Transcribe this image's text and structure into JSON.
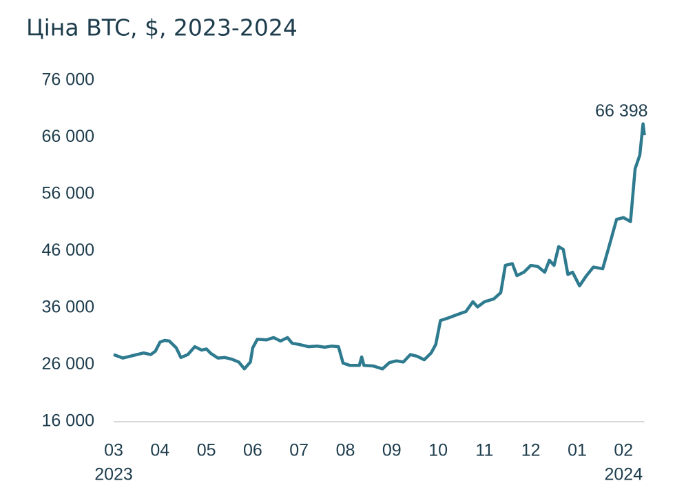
{
  "chart_data": {
    "type": "line",
    "title": "Ціна BTC, $, 2023-2024",
    "color": "#2e7a8f",
    "x": [
      0,
      0.1,
      0.2,
      0.35,
      0.5,
      0.65,
      0.8,
      0.9,
      1.0,
      1.1,
      1.2,
      1.35,
      1.45,
      1.6,
      1.75,
      1.9,
      2.0,
      2.1,
      2.25,
      2.4,
      2.55,
      2.7,
      2.82,
      2.95,
      3.0,
      3.1,
      3.3,
      3.45,
      3.6,
      3.75,
      3.85,
      4.0,
      4.2,
      4.4,
      4.55,
      4.7,
      4.85,
      4.95,
      5.1,
      5.3,
      5.35,
      5.4,
      5.6,
      5.8,
      5.95,
      6.1,
      6.25,
      6.4,
      6.55,
      6.7,
      6.85,
      6.95,
      7.05,
      7.2,
      7.4,
      7.6,
      7.75,
      7.85,
      8.0,
      8.2,
      8.35,
      8.45,
      8.6,
      8.7,
      8.85,
      9.0,
      9.15,
      9.3,
      9.4,
      9.5,
      9.6,
      9.7,
      9.8,
      9.9,
      10.05,
      10.2,
      10.35,
      10.55,
      10.7,
      10.85,
      11.0,
      11.15,
      11.25,
      11.35,
      11.42,
      11.45
    ],
    "values": [
      27800,
      27500,
      27200,
      27500,
      27800,
      28100,
      27800,
      28400,
      30000,
      30300,
      30200,
      29000,
      27300,
      27800,
      29200,
      28600,
      28800,
      28000,
      27200,
      27300,
      27000,
      26500,
      25300,
      26500,
      29000,
      30500,
      30400,
      30800,
      30200,
      30800,
      29800,
      29600,
      29200,
      29300,
      29100,
      29300,
      29200,
      26300,
      25900,
      25900,
      27400,
      25900,
      25800,
      25300,
      26400,
      26700,
      26500,
      27800,
      27500,
      26900,
      28100,
      29600,
      33800,
      34200,
      34800,
      35400,
      37100,
      36200,
      37100,
      37600,
      38700,
      43500,
      43800,
      41700,
      42300,
      43500,
      43300,
      42300,
      44400,
      43500,
      46800,
      46300,
      41900,
      42300,
      39900,
      41700,
      43200,
      42900,
      47200,
      51600,
      51900,
      51200,
      60500,
      62900,
      68400,
      66398
    ],
    "ylim": [
      16000,
      76000
    ],
    "yticks": [
      {
        "value": 16000,
        "label": "16 000"
      },
      {
        "value": 26000,
        "label": "26 000"
      },
      {
        "value": 36000,
        "label": "36 000"
      },
      {
        "value": 46000,
        "label": "46 000"
      },
      {
        "value": 56000,
        "label": "56 000"
      },
      {
        "value": 66000,
        "label": "66 000"
      },
      {
        "value": 76000,
        "label": "76 000"
      }
    ],
    "xlim": [
      0,
      11.45
    ],
    "xticks": [
      {
        "value": 0,
        "label": "03"
      },
      {
        "value": 1,
        "label": "04"
      },
      {
        "value": 2,
        "label": "05"
      },
      {
        "value": 3,
        "label": "06"
      },
      {
        "value": 4,
        "label": "07"
      },
      {
        "value": 5,
        "label": "08"
      },
      {
        "value": 6,
        "label": "09"
      },
      {
        "value": 7,
        "label": "10"
      },
      {
        "value": 8,
        "label": "11"
      },
      {
        "value": 9,
        "label": "12"
      },
      {
        "value": 10,
        "label": "01"
      },
      {
        "value": 11,
        "label": "02"
      }
    ],
    "year_labels": [
      {
        "value": 0,
        "label": "2023"
      },
      {
        "value": 11,
        "label": "2024"
      }
    ],
    "annotations": [
      {
        "text": "66 398"
      }
    ],
    "grid": false
  }
}
